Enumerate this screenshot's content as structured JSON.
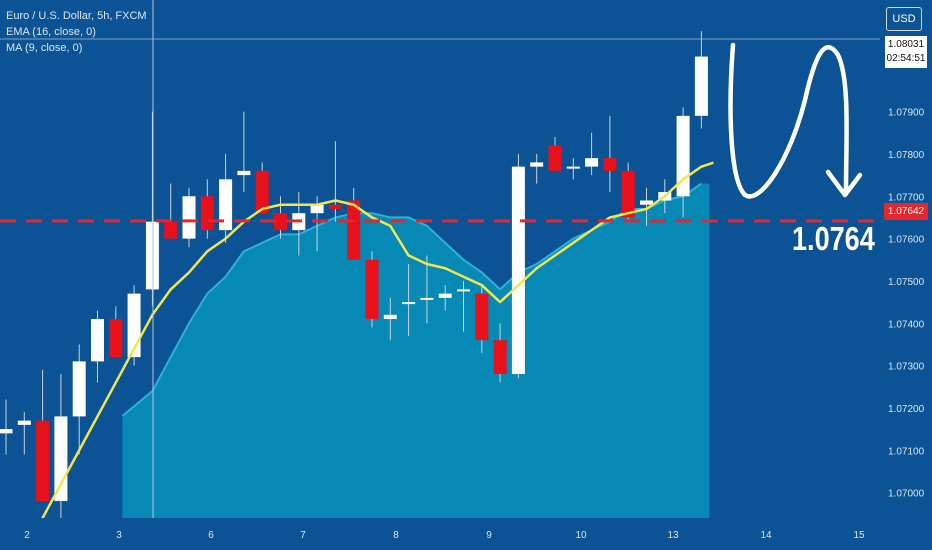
{
  "legend": {
    "symbol": "Euro / U.S. Dollar, 5h, FXCM",
    "ema": "EMA (16, close, 0)",
    "ma": "MA (9, close, 0)"
  },
  "currency": "USD",
  "last_price": "1.08031",
  "countdown": "02:54:51",
  "level_label": "1.07642",
  "big_label": "1.0764",
  "colors": {
    "background": "#0b5394",
    "up": "#ffffff",
    "down": "#e8101a",
    "ema": "#f2e64d",
    "ema_tail": "#a8e0a0",
    "area": "#0590b8",
    "level_line": "#e8252a"
  },
  "chart_data": {
    "type": "candlestick",
    "title": "Euro / U.S. Dollar, 5h, FXCM",
    "ylim": [
      1.0694,
      1.0814
    ],
    "y_ticks": [
      "1.07000",
      "1.07100",
      "1.07200",
      "1.07300",
      "1.07400",
      "1.07500",
      "1.07600",
      "1.07700",
      "1.07800",
      "1.07900"
    ],
    "x_ticks": [
      "2",
      "3",
      "6",
      "7",
      "8",
      "9",
      "10",
      "13",
      "14",
      "15"
    ],
    "level": 1.07642,
    "candles": [
      {
        "o": 1.0714,
        "h": 1.0722,
        "l": 1.0709,
        "c": 1.0715
      },
      {
        "o": 1.0716,
        "h": 1.0719,
        "l": 1.0709,
        "c": 1.0717
      },
      {
        "o": 1.0717,
        "h": 1.0729,
        "l": 1.0698,
        "c": 1.0698
      },
      {
        "o": 1.0698,
        "h": 1.0728,
        "l": 1.0694,
        "c": 1.0718
      },
      {
        "o": 1.0718,
        "h": 1.0735,
        "l": 1.0709,
        "c": 1.0731
      },
      {
        "o": 1.0731,
        "h": 1.0743,
        "l": 1.0726,
        "c": 1.0741
      },
      {
        "o": 1.0741,
        "h": 1.0744,
        "l": 1.0732,
        "c": 1.0732
      },
      {
        "o": 1.0732,
        "h": 1.0749,
        "l": 1.073,
        "c": 1.0747
      },
      {
        "o": 1.0748,
        "h": 1.079,
        "l": 1.0744,
        "c": 1.0764
      },
      {
        "o": 1.0764,
        "h": 1.0773,
        "l": 1.076,
        "c": 1.076
      },
      {
        "o": 1.076,
        "h": 1.0772,
        "l": 1.0758,
        "c": 1.077
      },
      {
        "o": 1.077,
        "h": 1.0774,
        "l": 1.076,
        "c": 1.0762
      },
      {
        "o": 1.0762,
        "h": 1.078,
        "l": 1.0759,
        "c": 1.0774
      },
      {
        "o": 1.0775,
        "h": 1.079,
        "l": 1.0771,
        "c": 1.0776
      },
      {
        "o": 1.0776,
        "h": 1.0778,
        "l": 1.0766,
        "c": 1.0766
      },
      {
        "o": 1.0766,
        "h": 1.077,
        "l": 1.076,
        "c": 1.0762
      },
      {
        "o": 1.0762,
        "h": 1.0771,
        "l": 1.0756,
        "c": 1.0766
      },
      {
        "o": 1.0766,
        "h": 1.077,
        "l": 1.0757,
        "c": 1.0768
      },
      {
        "o": 1.0768,
        "h": 1.0783,
        "l": 1.0764,
        "c": 1.0767
      },
      {
        "o": 1.0769,
        "h": 1.0772,
        "l": 1.0755,
        "c": 1.0755
      },
      {
        "o": 1.0755,
        "h": 1.0757,
        "l": 1.0739,
        "c": 1.0741
      },
      {
        "o": 1.0741,
        "h": 1.0746,
        "l": 1.0736,
        "c": 1.0742
      },
      {
        "o": 1.0745,
        "h": 1.0754,
        "l": 1.0737,
        "c": 1.0745
      },
      {
        "o": 1.0746,
        "h": 1.0756,
        "l": 1.074,
        "c": 1.0746
      },
      {
        "o": 1.0746,
        "h": 1.0749,
        "l": 1.0743,
        "c": 1.0747
      },
      {
        "o": 1.0748,
        "h": 1.075,
        "l": 1.0738,
        "c": 1.0748
      },
      {
        "o": 1.0747,
        "h": 1.0749,
        "l": 1.0733,
        "c": 1.0736
      },
      {
        "o": 1.0736,
        "h": 1.074,
        "l": 1.0726,
        "c": 1.0728
      },
      {
        "o": 1.0728,
        "h": 1.078,
        "l": 1.0727,
        "c": 1.0777
      },
      {
        "o": 1.0777,
        "h": 1.078,
        "l": 1.0773,
        "c": 1.0778
      },
      {
        "o": 1.0782,
        "h": 1.0784,
        "l": 1.0776,
        "c": 1.0776
      },
      {
        "o": 1.0777,
        "h": 1.0779,
        "l": 1.0774,
        "c": 1.0777
      },
      {
        "o": 1.0777,
        "h": 1.0785,
        "l": 1.0775,
        "c": 1.0779
      },
      {
        "o": 1.0779,
        "h": 1.0789,
        "l": 1.0771,
        "c": 1.0776
      },
      {
        "o": 1.0776,
        "h": 1.0778,
        "l": 1.0764,
        "c": 1.0765
      },
      {
        "o": 1.0768,
        "h": 1.0772,
        "l": 1.0763,
        "c": 1.0769
      },
      {
        "o": 1.0769,
        "h": 1.0774,
        "l": 1.0766,
        "c": 1.0771
      },
      {
        "o": 1.077,
        "h": 1.0791,
        "l": 1.0765,
        "c": 1.0789
      },
      {
        "o": 1.0789,
        "h": 1.0809,
        "l": 1.0786,
        "c": 1.0803
      }
    ],
    "ema": [
      null,
      null,
      1.0694,
      1.0702,
      1.071,
      1.0718,
      1.0726,
      1.0734,
      1.0742,
      1.0748,
      1.0752,
      1.0757,
      1.076,
      1.0764,
      1.0767,
      1.0768,
      1.0768,
      1.0768,
      1.0769,
      1.0768,
      1.0765,
      1.0763,
      1.0756,
      1.0754,
      1.0753,
      1.0751,
      1.0749,
      1.0745,
      1.0749,
      1.0753,
      1.0756,
      1.0759,
      1.0762,
      1.0765,
      1.0766,
      1.0767,
      1.077,
      1.0774,
      1.0777
    ],
    "ma": [
      null,
      null,
      null,
      null,
      null,
      null,
      null,
      null,
      1.0724,
      1.0732,
      1.074,
      1.0747,
      1.0751,
      1.0757,
      1.0759,
      1.0761,
      1.0761,
      1.0763,
      1.0765,
      1.0766,
      1.0766,
      1.0765,
      1.0765,
      1.0763,
      1.0759,
      1.0755,
      1.0752,
      1.0748,
      1.0752,
      1.0754,
      1.0757,
      1.076,
      1.0762,
      1.0764,
      1.0767,
      1.0767,
      1.0769,
      1.077,
      1.0773
    ]
  }
}
